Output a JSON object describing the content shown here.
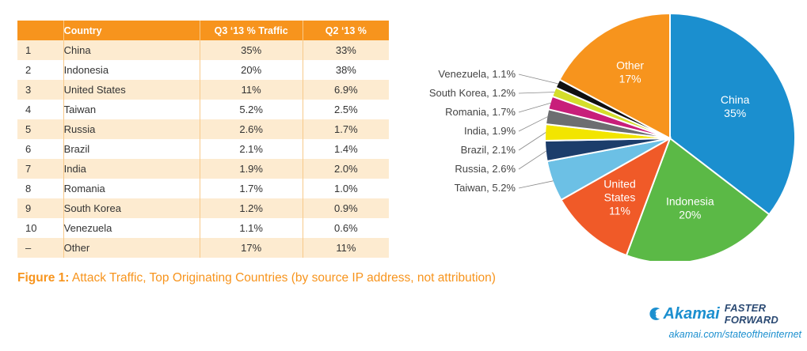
{
  "table": {
    "headers": [
      "",
      "Country",
      "Q3 ‘13 % Traffic",
      "Q2 ‘13 %"
    ],
    "rows": [
      {
        "rank": "1",
        "country": "China",
        "q3": "35%",
        "q2": "33%"
      },
      {
        "rank": "2",
        "country": "Indonesia",
        "q3": "20%",
        "q2": "38%"
      },
      {
        "rank": "3",
        "country": "United States",
        "q3": "11%",
        "q2": "6.9%"
      },
      {
        "rank": "4",
        "country": "Taiwan",
        "q3": "5.2%",
        "q2": "2.5%"
      },
      {
        "rank": "5",
        "country": "Russia",
        "q3": "2.6%",
        "q2": "1.7%"
      },
      {
        "rank": "6",
        "country": "Brazil",
        "q3": "2.1%",
        "q2": "1.4%"
      },
      {
        "rank": "7",
        "country": "India",
        "q3": "1.9%",
        "q2": "2.0%"
      },
      {
        "rank": "8",
        "country": "Romania",
        "q3": "1.7%",
        "q2": "1.0%"
      },
      {
        "rank": "9",
        "country": "South Korea",
        "q3": "1.2%",
        "q2": "0.9%"
      },
      {
        "rank": "10",
        "country": "Venezuela",
        "q3": "1.1%",
        "q2": "0.6%"
      },
      {
        "rank": "–",
        "country": "Other",
        "q3": "17%",
        "q2": "11%"
      }
    ]
  },
  "caption": {
    "label": "Figure 1:",
    "text": " Attack Traffic, Top Originating Countries (by source IP address, not attribution)"
  },
  "chart_data": {
    "type": "pie",
    "slices": [
      {
        "label": "China",
        "value": 35,
        "value_label": "35%",
        "color": "#1b8fcf",
        "label_style": "inside",
        "lines": [
          "China",
          "35%"
        ]
      },
      {
        "label": "Indonesia",
        "value": 20,
        "value_label": "20%",
        "color": "#5bb946",
        "label_style": "inside",
        "lines": [
          "Indonesia",
          "20%"
        ]
      },
      {
        "label": "United States",
        "value": 11,
        "value_label": "11%",
        "color": "#f05a28",
        "label_style": "inside",
        "lines": [
          "United",
          "States",
          "11%"
        ]
      },
      {
        "label": "Taiwan",
        "value": 5.2,
        "value_label": "5.2%",
        "color": "#6cc0e5",
        "label_style": "outside",
        "text": "Taiwan, 5.2%"
      },
      {
        "label": "Russia",
        "value": 2.6,
        "value_label": "2.6%",
        "color": "#1c3d6b",
        "label_style": "outside",
        "text": "Russia, 2.6%"
      },
      {
        "label": "Brazil",
        "value": 2.1,
        "value_label": "2.1%",
        "color": "#f2e500",
        "label_style": "outside",
        "text": "Brazil, 2.1%"
      },
      {
        "label": "India",
        "value": 1.9,
        "value_label": "1.9%",
        "color": "#6d6e71",
        "label_style": "outside",
        "text": "India, 1.9%"
      },
      {
        "label": "Romania",
        "value": 1.7,
        "value_label": "1.7%",
        "color": "#c81e7a",
        "label_style": "outside",
        "text": "Romania, 1.7%"
      },
      {
        "label": "South Korea",
        "value": 1.2,
        "value_label": "1.2%",
        "color": "#d4de2c",
        "label_style": "outside",
        "text": "South Korea, 1.2%"
      },
      {
        "label": "Venezuela",
        "value": 1.1,
        "value_label": "1.1%",
        "color": "#111111",
        "label_style": "outside",
        "text": "Venezuela, 1.1%"
      },
      {
        "label": "Other",
        "value": 17,
        "value_label": "17%",
        "color": "#f7941d",
        "label_style": "inside",
        "lines": [
          "Other",
          "17%"
        ]
      }
    ],
    "start": "12 o'clock",
    "direction": "clockwise"
  },
  "brand": {
    "name": "Akamai",
    "tagline": "FASTER FORWARD",
    "url": "akamai.com/stateoftheinternet"
  }
}
